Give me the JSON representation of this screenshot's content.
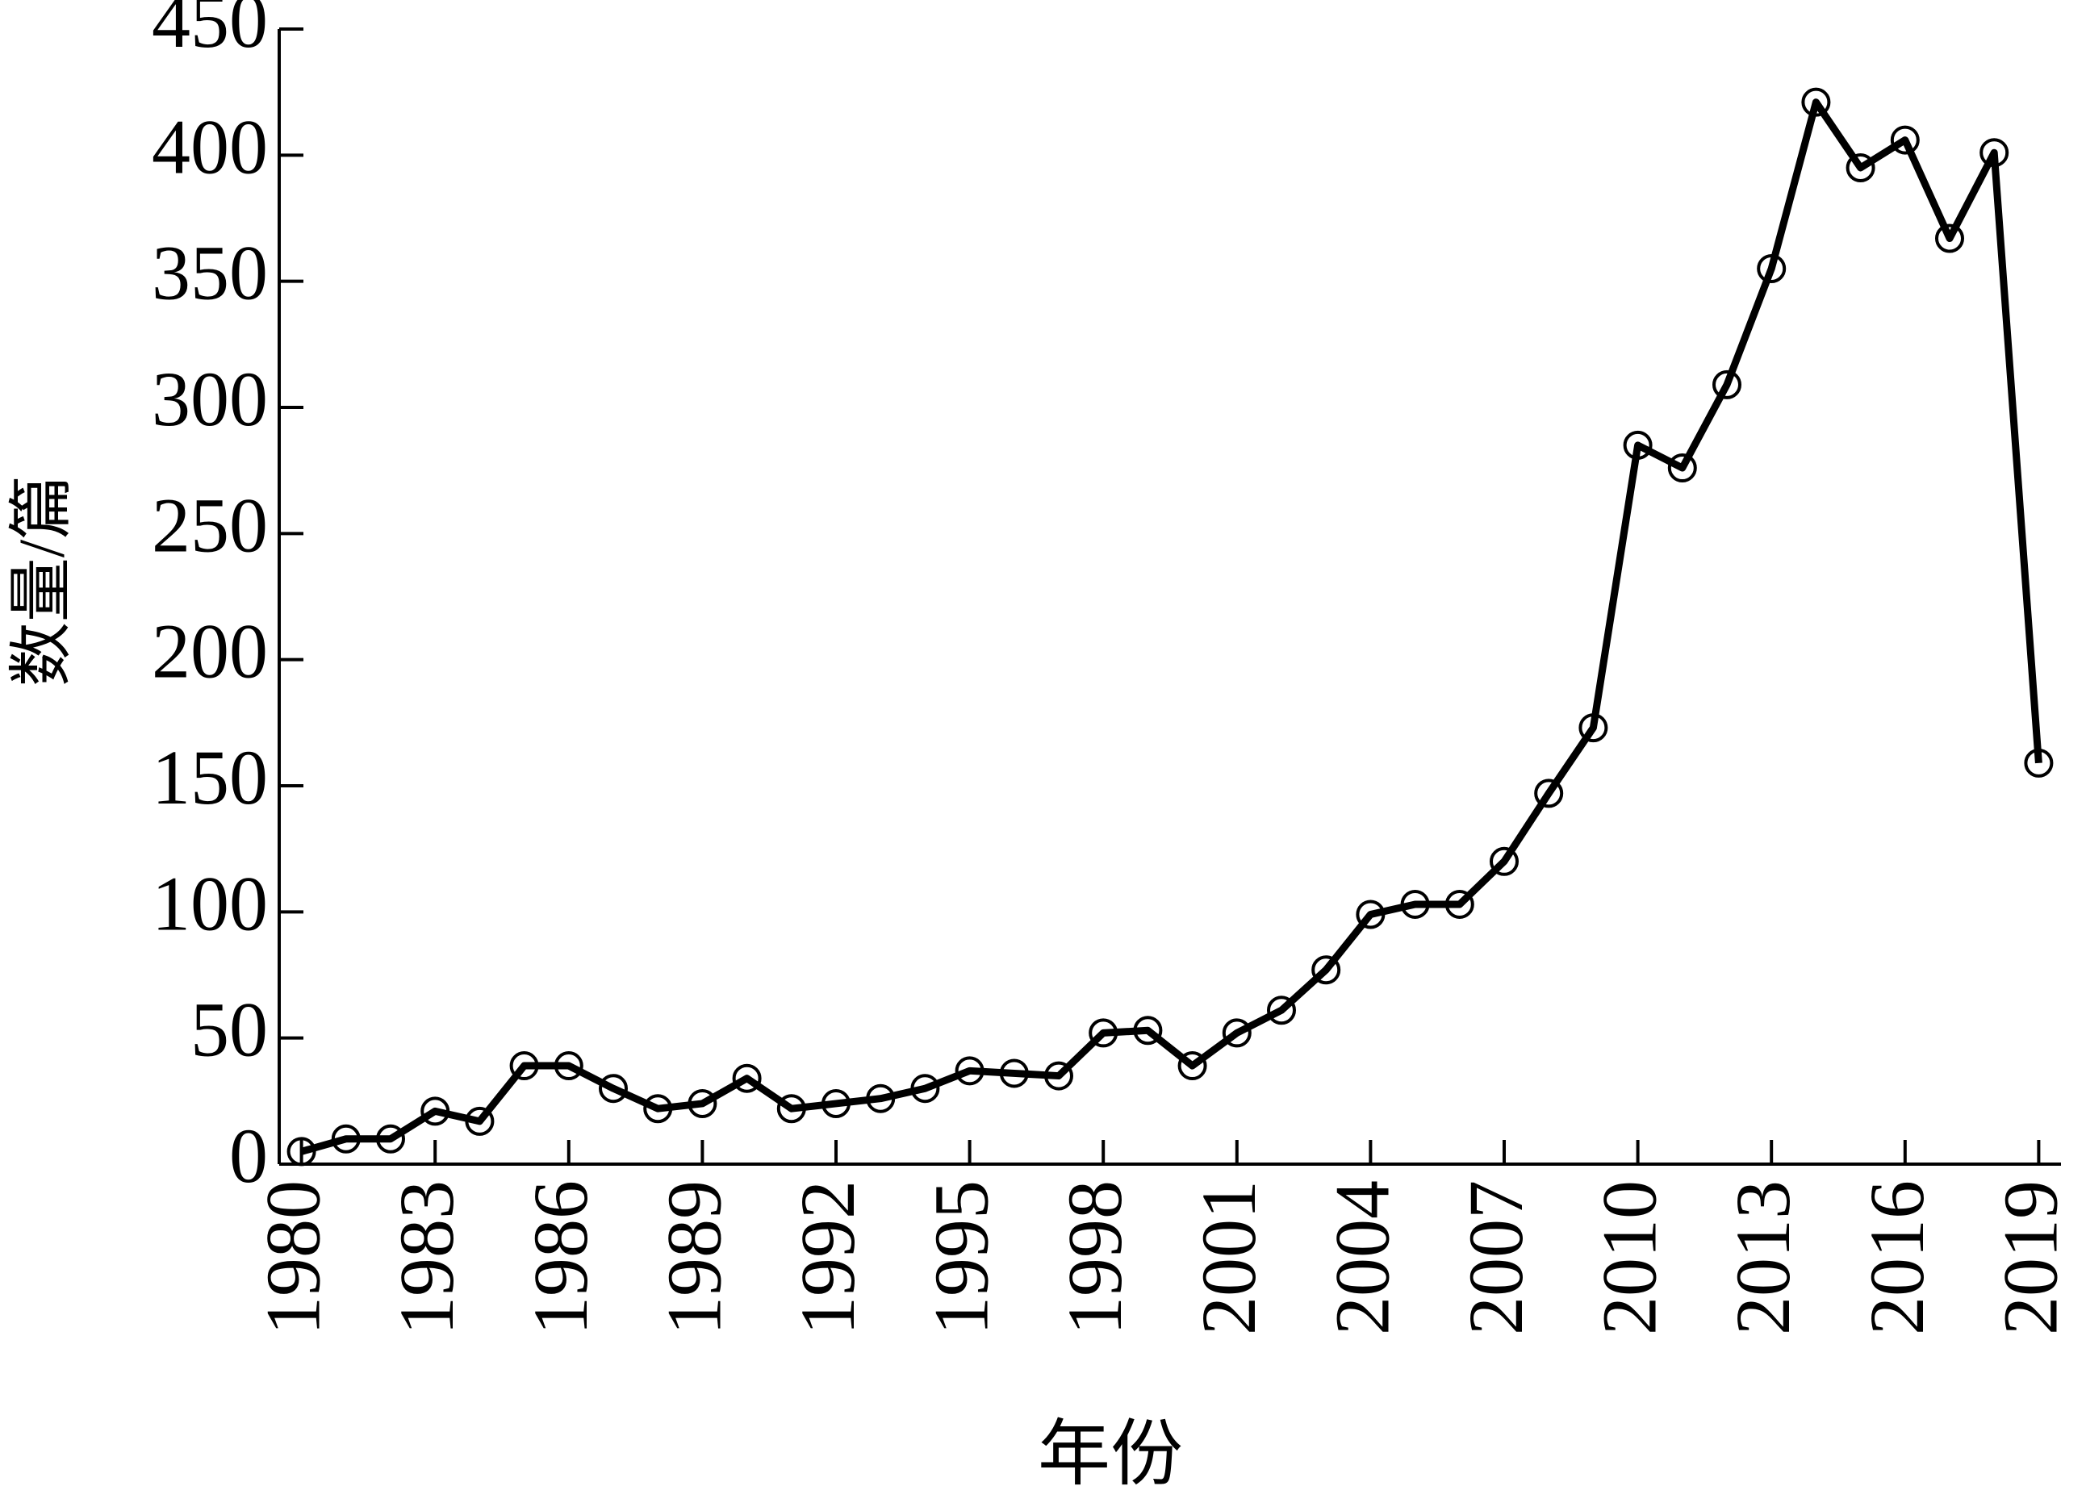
{
  "chart_data": {
    "type": "line",
    "xlabel": "年份",
    "ylabel": "数量/篇",
    "x": [
      1980,
      1981,
      1982,
      1983,
      1984,
      1985,
      1986,
      1987,
      1988,
      1989,
      1990,
      1991,
      1992,
      1993,
      1994,
      1995,
      1996,
      1997,
      1998,
      1999,
      2000,
      2001,
      2002,
      2003,
      2004,
      2005,
      2006,
      2007,
      2008,
      2009,
      2010,
      2011,
      2012,
      2013,
      2014,
      2015,
      2016,
      2017,
      2018,
      2019
    ],
    "series": [
      {
        "color": "#000000",
        "values": [
          5,
          10,
          10,
          21,
          17,
          39,
          39,
          30,
          22,
          24,
          34,
          22,
          24,
          26,
          30,
          37,
          36,
          35,
          52,
          53,
          39,
          52,
          61,
          77,
          99,
          103,
          103,
          120,
          147,
          173,
          285,
          276,
          309,
          355,
          421,
          395,
          406,
          367,
          401,
          159
        ]
      }
    ],
    "xlim": [
      1979.5,
      2019.5
    ],
    "xticks": [
      1980,
      1983,
      1986,
      1989,
      1992,
      1995,
      1998,
      2001,
      2004,
      2007,
      2010,
      2013,
      2016,
      2019
    ],
    "ylim": [
      0,
      450
    ],
    "yticks": [
      0,
      50,
      100,
      150,
      200,
      250,
      300,
      350,
      400,
      450
    ],
    "grid": false
  }
}
